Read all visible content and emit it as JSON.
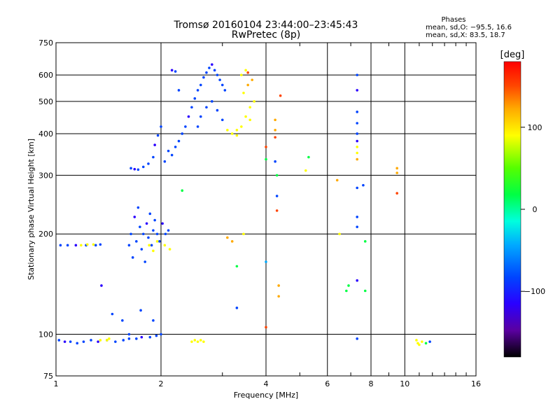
{
  "chart_data": {
    "type": "scatter",
    "title": "Tromsø 20160104 23:44:00–23:45:43",
    "subtitle": "RwPretec (8p)",
    "xlabel": "Frequency [MHz]",
    "ylabel": "Stationary phase Virtual Height [km]",
    "xscale": "log2",
    "yscale": "log",
    "xlim": [
      1,
      16
    ],
    "ylim": [
      75,
      750
    ],
    "x_ticks": [
      1,
      2,
      4,
      6,
      8,
      10,
      16
    ],
    "y_ticks": [
      75,
      100,
      200,
      300,
      400,
      500,
      600,
      750
    ],
    "grid": true,
    "phases_box": {
      "heading": "Phases",
      "line1": "mean, sd,O: −95.5, 16.6",
      "line2": "mean, sd,X: 83.5, 18.7"
    },
    "colorbar": {
      "label": "[deg]",
      "range": [
        -180,
        180
      ],
      "ticks": [
        100,
        0,
        -100
      ],
      "placement": "right",
      "colormap": [
        "#000000",
        "#5a00a0",
        "#2a00ff",
        "#0044ff",
        "#00aaff",
        "#00ffdd",
        "#00ff44",
        "#55ff00",
        "#ffff00",
        "#ffaa00",
        "#ff4400",
        "#ff0000"
      ]
    },
    "series": [
      {
        "points": [
          {
            "x": 1.02,
            "y": 96,
            "p": -95
          },
          {
            "x": 1.06,
            "y": 95,
            "p": -100
          },
          {
            "x": 1.1,
            "y": 95,
            "p": -95
          },
          {
            "x": 1.15,
            "y": 94,
            "p": -98
          },
          {
            "x": 1.2,
            "y": 95,
            "p": -92
          },
          {
            "x": 1.26,
            "y": 96,
            "p": -95
          },
          {
            "x": 1.32,
            "y": 95,
            "p": -100
          },
          {
            "x": 1.4,
            "y": 96,
            "p": -95
          },
          {
            "x": 1.48,
            "y": 95,
            "p": -94
          },
          {
            "x": 1.56,
            "y": 96,
            "p": -96
          },
          {
            "x": 1.62,
            "y": 97,
            "p": -95
          },
          {
            "x": 1.7,
            "y": 97,
            "p": -95
          },
          {
            "x": 1.76,
            "y": 98,
            "p": -100
          },
          {
            "x": 1.86,
            "y": 98,
            "p": -92
          },
          {
            "x": 1.94,
            "y": 99,
            "p": -98
          },
          {
            "x": 2.0,
            "y": 100,
            "p": -95
          },
          {
            "x": 1.03,
            "y": 185,
            "p": -96
          },
          {
            "x": 1.08,
            "y": 185,
            "p": -95
          },
          {
            "x": 1.14,
            "y": 185,
            "p": -100
          },
          {
            "x": 1.22,
            "y": 185,
            "p": -95
          },
          {
            "x": 1.3,
            "y": 185,
            "p": -94
          },
          {
            "x": 1.34,
            "y": 186,
            "p": -95
          },
          {
            "x": 1.18,
            "y": 185,
            "p": 88
          },
          {
            "x": 1.23,
            "y": 186,
            "p": 95
          },
          {
            "x": 1.28,
            "y": 186,
            "p": 90
          },
          {
            "x": 1.34,
            "y": 96,
            "p": 85
          },
          {
            "x": 1.4,
            "y": 96,
            "p": 90
          },
          {
            "x": 1.42,
            "y": 97,
            "p": 80
          },
          {
            "x": 1.62,
            "y": 185,
            "p": -95
          },
          {
            "x": 1.64,
            "y": 200,
            "p": -98
          },
          {
            "x": 1.66,
            "y": 170,
            "p": -95
          },
          {
            "x": 1.68,
            "y": 225,
            "p": -100
          },
          {
            "x": 1.7,
            "y": 190,
            "p": -92
          },
          {
            "x": 1.72,
            "y": 240,
            "p": -96
          },
          {
            "x": 1.74,
            "y": 210,
            "p": -95
          },
          {
            "x": 1.76,
            "y": 180,
            "p": -94
          },
          {
            "x": 1.78,
            "y": 200,
            "p": -96
          },
          {
            "x": 1.8,
            "y": 165,
            "p": -95
          },
          {
            "x": 1.82,
            "y": 215,
            "p": -100
          },
          {
            "x": 1.84,
            "y": 195,
            "p": -92
          },
          {
            "x": 1.86,
            "y": 230,
            "p": -95
          },
          {
            "x": 1.88,
            "y": 185,
            "p": -98
          },
          {
            "x": 1.9,
            "y": 205,
            "p": -95
          },
          {
            "x": 1.92,
            "y": 220,
            "p": -96
          },
          {
            "x": 1.95,
            "y": 200,
            "p": -94
          },
          {
            "x": 1.98,
            "y": 190,
            "p": -95
          },
          {
            "x": 2.02,
            "y": 215,
            "p": -100
          },
          {
            "x": 2.06,
            "y": 200,
            "p": -95
          },
          {
            "x": 2.1,
            "y": 205,
            "p": -92
          },
          {
            "x": 1.85,
            "y": 185,
            "p": 90
          },
          {
            "x": 1.9,
            "y": 178,
            "p": 85
          },
          {
            "x": 1.95,
            "y": 190,
            "p": 88
          },
          {
            "x": 2.05,
            "y": 185,
            "p": 92
          },
          {
            "x": 2.12,
            "y": 180,
            "p": 90
          },
          {
            "x": 1.64,
            "y": 315,
            "p": -95
          },
          {
            "x": 1.68,
            "y": 313,
            "p": -100
          },
          {
            "x": 1.72,
            "y": 312,
            "p": -95
          },
          {
            "x": 1.78,
            "y": 318,
            "p": -92
          },
          {
            "x": 1.84,
            "y": 325,
            "p": -96
          },
          {
            "x": 1.9,
            "y": 340,
            "p": -95
          },
          {
            "x": 1.92,
            "y": 370,
            "p": -100
          },
          {
            "x": 1.96,
            "y": 395,
            "p": -95
          },
          {
            "x": 2.0,
            "y": 420,
            "p": -94
          },
          {
            "x": 2.05,
            "y": 330,
            "p": -95
          },
          {
            "x": 2.1,
            "y": 355,
            "p": -98
          },
          {
            "x": 2.15,
            "y": 345,
            "p": -95
          },
          {
            "x": 2.2,
            "y": 365,
            "p": -96
          },
          {
            "x": 2.25,
            "y": 380,
            "p": -95
          },
          {
            "x": 2.3,
            "y": 400,
            "p": -92
          },
          {
            "x": 2.35,
            "y": 420,
            "p": -95
          },
          {
            "x": 2.4,
            "y": 450,
            "p": -100
          },
          {
            "x": 2.45,
            "y": 480,
            "p": -95
          },
          {
            "x": 2.5,
            "y": 510,
            "p": -94
          },
          {
            "x": 2.55,
            "y": 540,
            "p": -96
          },
          {
            "x": 2.6,
            "y": 560,
            "p": -95
          },
          {
            "x": 2.65,
            "y": 590,
            "p": -98
          },
          {
            "x": 2.7,
            "y": 610,
            "p": -95
          },
          {
            "x": 2.75,
            "y": 630,
            "p": -95
          },
          {
            "x": 2.8,
            "y": 645,
            "p": -100
          },
          {
            "x": 2.85,
            "y": 620,
            "p": -92
          },
          {
            "x": 2.9,
            "y": 600,
            "p": -95
          },
          {
            "x": 2.95,
            "y": 580,
            "p": -96
          },
          {
            "x": 3.0,
            "y": 560,
            "p": -95
          },
          {
            "x": 3.05,
            "y": 540,
            "p": -94
          },
          {
            "x": 2.55,
            "y": 420,
            "p": -80
          },
          {
            "x": 2.6,
            "y": 450,
            "p": -75
          },
          {
            "x": 2.7,
            "y": 480,
            "p": -85
          },
          {
            "x": 2.8,
            "y": 500,
            "p": -70
          },
          {
            "x": 2.9,
            "y": 470,
            "p": -80
          },
          {
            "x": 3.0,
            "y": 440,
            "p": -78
          },
          {
            "x": 3.1,
            "y": 410,
            "p": 90
          },
          {
            "x": 3.2,
            "y": 400,
            "p": 95
          },
          {
            "x": 3.3,
            "y": 395,
            "p": 85
          },
          {
            "x": 3.4,
            "y": 420,
            "p": 88
          },
          {
            "x": 3.5,
            "y": 450,
            "p": 92
          },
          {
            "x": 3.6,
            "y": 480,
            "p": 90
          },
          {
            "x": 3.7,
            "y": 500,
            "p": 85
          },
          {
            "x": 3.45,
            "y": 530,
            "p": 95
          },
          {
            "x": 3.55,
            "y": 560,
            "p": 100
          },
          {
            "x": 3.5,
            "y": 620,
            "p": 95
          },
          {
            "x": 3.4,
            "y": 600,
            "p": 90
          },
          {
            "x": 3.6,
            "y": 440,
            "p": 88
          },
          {
            "x": 3.3,
            "y": 410,
            "p": 92
          },
          {
            "x": 3.65,
            "y": 580,
            "p": 130
          },
          {
            "x": 3.55,
            "y": 610,
            "p": 140
          },
          {
            "x": 2.45,
            "y": 95,
            "p": 90
          },
          {
            "x": 2.5,
            "y": 96,
            "p": 95
          },
          {
            "x": 2.55,
            "y": 95,
            "p": 88
          },
          {
            "x": 2.6,
            "y": 96,
            "p": 92
          },
          {
            "x": 2.65,
            "y": 95,
            "p": 85
          },
          {
            "x": 2.15,
            "y": 620,
            "p": -100
          },
          {
            "x": 2.2,
            "y": 615,
            "p": -95
          },
          {
            "x": 2.25,
            "y": 540,
            "p": -95
          },
          {
            "x": 1.35,
            "y": 140,
            "p": -100
          },
          {
            "x": 1.45,
            "y": 115,
            "p": -95
          },
          {
            "x": 1.55,
            "y": 110,
            "p": -94
          },
          {
            "x": 1.62,
            "y": 100,
            "p": -95
          },
          {
            "x": 1.75,
            "y": 118,
            "p": -96
          },
          {
            "x": 1.9,
            "y": 110,
            "p": -95
          },
          {
            "x": 2.3,
            "y": 270,
            "p": 0
          },
          {
            "x": 3.1,
            "y": 195,
            "p": 100
          },
          {
            "x": 3.2,
            "y": 190,
            "p": 110
          },
          {
            "x": 3.45,
            "y": 200,
            "p": 95
          },
          {
            "x": 3.3,
            "y": 160,
            "p": 0
          },
          {
            "x": 3.3,
            "y": 120,
            "p": -95
          },
          {
            "x": 4.25,
            "y": 440,
            "p": 110
          },
          {
            "x": 4.25,
            "y": 410,
            "p": 130
          },
          {
            "x": 4.25,
            "y": 390,
            "p": 160
          },
          {
            "x": 4.25,
            "y": 330,
            "p": -95
          },
          {
            "x": 4.3,
            "y": 300,
            "p": 20
          },
          {
            "x": 4.3,
            "y": 260,
            "p": -90
          },
          {
            "x": 4.3,
            "y": 235,
            "p": 140
          },
          {
            "x": 4.35,
            "y": 140,
            "p": 100
          },
          {
            "x": 4.35,
            "y": 130,
            "p": 110
          },
          {
            "x": 4.0,
            "y": 365,
            "p": 150
          },
          {
            "x": 4.0,
            "y": 335,
            "p": 20
          },
          {
            "x": 4.0,
            "y": 165,
            "p": -50
          },
          {
            "x": 4.0,
            "y": 105,
            "p": 150
          },
          {
            "x": 4.4,
            "y": 520,
            "p": 150
          },
          {
            "x": 5.3,
            "y": 340,
            "p": 20
          },
          {
            "x": 5.2,
            "y": 310,
            "p": 90
          },
          {
            "x": 6.4,
            "y": 290,
            "p": 100
          },
          {
            "x": 6.5,
            "y": 200,
            "p": 90
          },
          {
            "x": 6.8,
            "y": 135,
            "p": 20
          },
          {
            "x": 6.9,
            "y": 140,
            "p": 20
          },
          {
            "x": 7.3,
            "y": 600,
            "p": -95
          },
          {
            "x": 7.3,
            "y": 540,
            "p": -100
          },
          {
            "x": 7.3,
            "y": 465,
            "p": -95
          },
          {
            "x": 7.3,
            "y": 430,
            "p": -98
          },
          {
            "x": 7.3,
            "y": 400,
            "p": -95
          },
          {
            "x": 7.3,
            "y": 380,
            "p": -100
          },
          {
            "x": 7.3,
            "y": 365,
            "p": 90
          },
          {
            "x": 7.3,
            "y": 350,
            "p": 95
          },
          {
            "x": 7.3,
            "y": 335,
            "p": 100
          },
          {
            "x": 7.3,
            "y": 275,
            "p": -95
          },
          {
            "x": 7.3,
            "y": 225,
            "p": -90
          },
          {
            "x": 7.3,
            "y": 210,
            "p": -95
          },
          {
            "x": 7.3,
            "y": 145,
            "p": -110
          },
          {
            "x": 7.3,
            "y": 97,
            "p": -95
          },
          {
            "x": 7.6,
            "y": 280,
            "p": -95
          },
          {
            "x": 7.7,
            "y": 190,
            "p": 20
          },
          {
            "x": 7.7,
            "y": 135,
            "p": 20
          },
          {
            "x": 9.5,
            "y": 315,
            "p": 100
          },
          {
            "x": 9.5,
            "y": 305,
            "p": 130
          },
          {
            "x": 9.5,
            "y": 265,
            "p": 150
          },
          {
            "x": 10.8,
            "y": 96,
            "p": 90
          },
          {
            "x": 10.9,
            "y": 94,
            "p": 95
          },
          {
            "x": 11.0,
            "y": 93,
            "p": 85
          },
          {
            "x": 11.2,
            "y": 95,
            "p": 88
          },
          {
            "x": 11.5,
            "y": 94,
            "p": 20
          },
          {
            "x": 11.8,
            "y": 95,
            "p": -95
          }
        ]
      }
    ]
  }
}
